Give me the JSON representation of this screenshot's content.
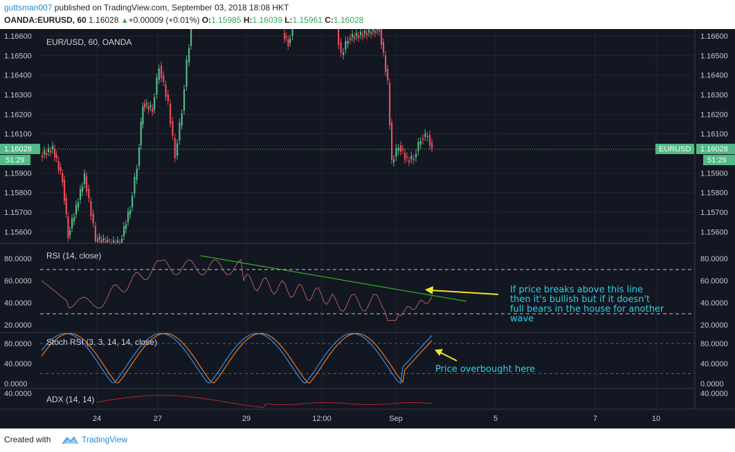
{
  "header": {
    "author": "guttsman007",
    "published": "published on TradingView.com, September 03, 2018 18:08 HKT",
    "symbol": "OANDA:EURUSD, 60",
    "last": "1.16028",
    "change_arrow": "▲",
    "change": "+0.00009 (+0.01%)",
    "o_label": "O:",
    "o": "1.15985",
    "h_label": "H:",
    "h": "1.16039",
    "l_label": "L:",
    "l": "1.15961",
    "c_label": "C:",
    "c": "1.16028"
  },
  "price_pane": {
    "title": "EUR/USD, 60, OANDA",
    "y_labels": [
      "1.16600",
      "1.16500",
      "1.16400",
      "1.16300",
      "1.16200",
      "1.16100",
      "1.15900",
      "1.15800",
      "1.15700",
      "1.15600"
    ],
    "current_price": "1.16028",
    "countdown": "51:29",
    "symbol_badge": "EURUSD",
    "up_color": "#53b987",
    "down_color": "#eb4d5c"
  },
  "rsi_pane": {
    "title": "RSI (14, close)",
    "y_labels": [
      "80.0000",
      "60.0000",
      "40.0000",
      "20.0000"
    ],
    "line_color": "#b0615e",
    "trendline_color": "#36d12b",
    "annotation_lines": [
      "If price breaks above this line",
      "then it's bullish but if it doesn't",
      "full bears in the house for another",
      "wave"
    ]
  },
  "stoch_pane": {
    "title": "Stoch RSI (3, 3, 14, 14, close)",
    "y_labels": [
      "80.0000",
      "40.0000",
      "0.0000"
    ],
    "k_color": "#2d8ff0",
    "d_color": "#f07d1a",
    "annotation": "Price overbought here"
  },
  "adx_pane": {
    "title": "ADX (14, 14)",
    "y_labels": [
      "40.0000"
    ],
    "line_color": "#b8252a"
  },
  "x_axis": {
    "labels": [
      "24",
      "27",
      "29",
      "12:00",
      "Sep",
      "5",
      "7",
      "10"
    ]
  },
  "footer": {
    "created_with": "Created with",
    "brand": "TradingView"
  },
  "arrow_color": "#f0e52a"
}
